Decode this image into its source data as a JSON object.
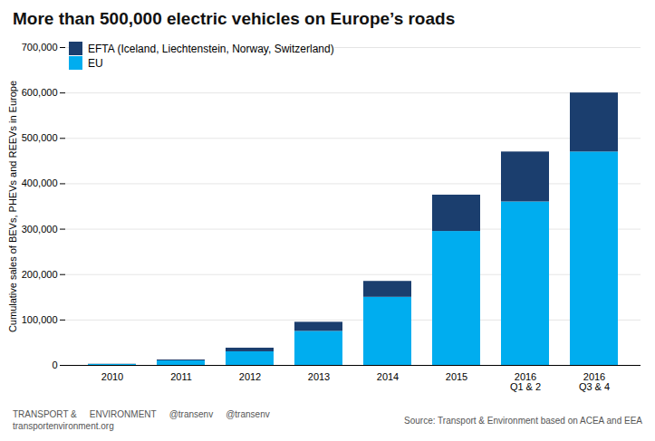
{
  "chart_data": {
    "type": "bar",
    "stacked": true,
    "title": "More than 500,000 electric vehicles on Europe’s roads",
    "y_label": "Cumulative sales of BEVs, PHEVs and REEVs in Europe",
    "categories": [
      "2010",
      "2011",
      "2012",
      "2013",
      "2014",
      "2015",
      "2016\nQ1 & 2",
      "2016\nQ3 & 4"
    ],
    "series": [
      {
        "name": "EU",
        "color": "#00adef",
        "values": [
          2000,
          10000,
          30000,
          75000,
          150000,
          295000,
          360000,
          470000
        ]
      },
      {
        "name": "EFTA (Iceland, Liechtenstein, Norway, Switzerland)",
        "color": "#1b3e6e",
        "values": [
          500,
          2000,
          8000,
          20000,
          35000,
          80000,
          110000,
          130000
        ]
      }
    ],
    "ylim": [
      0,
      700000
    ],
    "yticks": [
      0,
      {
        "value": 100000,
        "label": "100,000"
      },
      {
        "value": 200000,
        "label": "200,000"
      },
      {
        "value": 300000,
        "label": "300,000"
      },
      {
        "value": 400000,
        "label": "400,000"
      },
      {
        "value": 500000,
        "label": "500,000"
      },
      {
        "value": 600000,
        "label": "600,000"
      },
      {
        "value": 700000,
        "label": "700,000"
      }
    ],
    "grid": true,
    "legend": "upper left",
    "annotations": [
      "TRANSPORT &",
      "ENVIRONMENT",
      "@transenv",
      "@transenv",
      "transportenvironment.org",
      "Source: Transport & Environment based on ACEA and EEA"
    ]
  }
}
